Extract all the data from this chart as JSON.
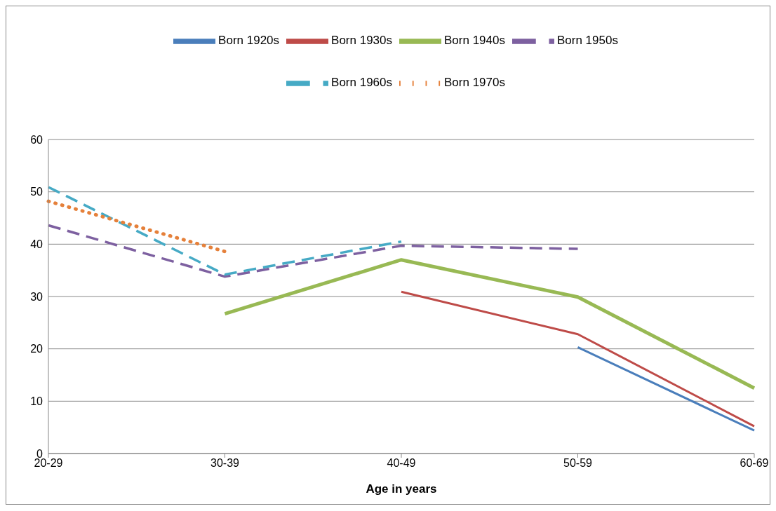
{
  "chart_data": {
    "type": "line",
    "xlabel": "Age in years",
    "categories": [
      "20-29",
      "30-39",
      "40-49",
      "50-59",
      "60-69"
    ],
    "series": [
      {
        "name": "Born 1920s",
        "color": "#4a7ebb",
        "line_style": "solid",
        "values": [
          null,
          null,
          null,
          20.3,
          4.4
        ]
      },
      {
        "name": "Born 1930s",
        "color": "#be4b48",
        "line_style": "solid",
        "values": [
          null,
          null,
          30.9,
          22.8,
          5.2
        ]
      },
      {
        "name": "Born 1940s",
        "color": "#98b954",
        "line_style": "solid",
        "values": [
          null,
          26.7,
          37.0,
          29.9,
          12.5
        ]
      },
      {
        "name": "Born 1950s",
        "color": "#7d60a0",
        "line_style": "dashed",
        "values": [
          43.6,
          33.8,
          39.7,
          39.1,
          null
        ]
      },
      {
        "name": "Born 1960s",
        "color": "#46aac5",
        "line_style": "dashed",
        "values": [
          50.9,
          34.2,
          40.5,
          null,
          null
        ]
      },
      {
        "name": "Born 1970s",
        "color": "#e5803a",
        "line_style": "dotted",
        "values": [
          48.2,
          38.6,
          null,
          null,
          null
        ]
      }
    ],
    "ylim": [
      0,
      60
    ],
    "yticks": [
      0,
      10,
      20,
      30,
      40,
      50,
      60
    ],
    "grid": "y",
    "legend": "top",
    "marker": "none"
  }
}
